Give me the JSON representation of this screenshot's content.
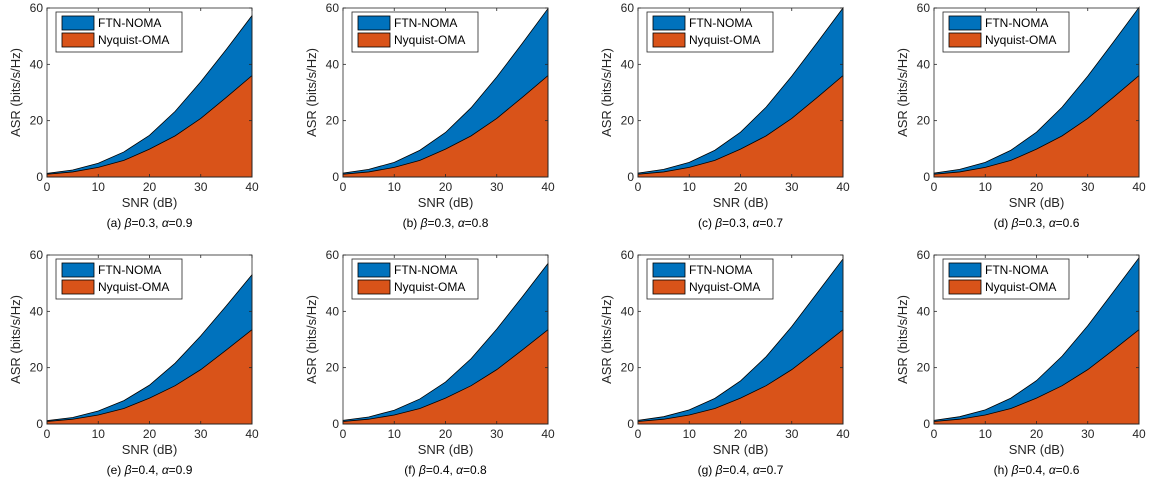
{
  "colors": {
    "ftn_noma": "#0072BD",
    "nyquist_oma": "#D95319"
  },
  "chart_data": [
    {
      "type": "area",
      "caption": {
        "prefix": "(a) ",
        "beta": "β",
        "beta_value": "=0.3, ",
        "alpha": "α",
        "alpha_value": "=0.9"
      },
      "xlabel": "SNR (dB)",
      "ylabel": "ASR (bits/s/Hz)",
      "xlim": [
        0,
        40
      ],
      "ylim": [
        0,
        60
      ],
      "xticks": [
        "0",
        "10",
        "20",
        "30",
        "40"
      ],
      "yticks": [
        "0",
        "20",
        "40",
        "60"
      ],
      "legend_position": "top-left",
      "x": [
        0,
        5,
        10,
        15,
        20,
        25,
        30,
        35,
        40
      ],
      "series": [
        {
          "name": "FTN-NOMA",
          "values": [
            1.3,
            2.5,
            4.9,
            8.9,
            14.8,
            23.3,
            33.8,
            45.3,
            57.3
          ]
        },
        {
          "name": "Nyquist-OMA",
          "values": [
            1.0,
            1.8,
            3.4,
            5.9,
            9.9,
            14.6,
            20.8,
            28.3,
            36.0
          ]
        }
      ]
    },
    {
      "type": "area",
      "caption": {
        "prefix": "(b) ",
        "beta": "β",
        "beta_value": "=0.3, ",
        "alpha": "α",
        "alpha_value": "=0.8"
      },
      "xlabel": "SNR (dB)",
      "ylabel": "ASR (bits/s/Hz)",
      "xlim": [
        0,
        40
      ],
      "ylim": [
        0,
        60
      ],
      "xticks": [
        "0",
        "10",
        "20",
        "30",
        "40"
      ],
      "yticks": [
        "0",
        "20",
        "40",
        "60"
      ],
      "legend_position": "top-left",
      "x": [
        0,
        5,
        10,
        15,
        20,
        25,
        30,
        35,
        40
      ],
      "series": [
        {
          "name": "FTN-NOMA",
          "values": [
            1.4,
            2.7,
            5.2,
            9.5,
            15.8,
            24.6,
            35.5,
            47.5,
            59.8
          ]
        },
        {
          "name": "Nyquist-OMA",
          "values": [
            1.0,
            1.8,
            3.4,
            5.9,
            9.9,
            14.6,
            20.8,
            28.3,
            36.0
          ]
        }
      ]
    },
    {
      "type": "area",
      "caption": {
        "prefix": "(c) ",
        "beta": "β",
        "beta_value": "=0.3, ",
        "alpha": "α",
        "alpha_value": "=0.7"
      },
      "xlabel": "SNR (dB)",
      "ylabel": "ASR (bits/s/Hz)",
      "xlim": [
        0,
        40
      ],
      "ylim": [
        0,
        60
      ],
      "xticks": [
        "0",
        "10",
        "20",
        "30",
        "40"
      ],
      "yticks": [
        "0",
        "20",
        "40",
        "60"
      ],
      "legend_position": "top-left",
      "x": [
        0,
        5,
        10,
        15,
        20,
        25,
        30,
        35,
        40
      ],
      "series": [
        {
          "name": "FTN-NOMA",
          "values": [
            1.4,
            2.7,
            5.2,
            9.5,
            15.9,
            24.8,
            35.8,
            47.8,
            60.0
          ]
        },
        {
          "name": "Nyquist-OMA",
          "values": [
            1.0,
            1.8,
            3.4,
            5.9,
            9.9,
            14.6,
            20.8,
            28.3,
            36.0
          ]
        }
      ]
    },
    {
      "type": "area",
      "caption": {
        "prefix": "(d) ",
        "beta": "β",
        "beta_value": "=0.3, ",
        "alpha": "α",
        "alpha_value": "=0.6"
      },
      "xlabel": "SNR (dB)",
      "ylabel": "ASR (bits/s/Hz)",
      "xlim": [
        0,
        40
      ],
      "ylim": [
        0,
        60
      ],
      "xticks": [
        "0",
        "10",
        "20",
        "30",
        "40"
      ],
      "yticks": [
        "0",
        "20",
        "40",
        "60"
      ],
      "legend_position": "top-left",
      "x": [
        0,
        5,
        10,
        15,
        20,
        25,
        30,
        35,
        40
      ],
      "series": [
        {
          "name": "FTN-NOMA",
          "values": [
            1.4,
            2.7,
            5.2,
            9.5,
            15.9,
            24.8,
            35.8,
            47.9,
            60.2
          ]
        },
        {
          "name": "Nyquist-OMA",
          "values": [
            1.0,
            1.8,
            3.4,
            5.9,
            9.9,
            14.6,
            20.8,
            28.3,
            36.0
          ]
        }
      ]
    },
    {
      "type": "area",
      "caption": {
        "prefix": "(e) ",
        "beta": "β",
        "beta_value": "=0.4, ",
        "alpha": "α",
        "alpha_value": "=0.9"
      },
      "xlabel": "SNR (dB)",
      "ylabel": "ASR (bits/s/Hz)",
      "xlim": [
        0,
        40
      ],
      "ylim": [
        0,
        60
      ],
      "xticks": [
        "0",
        "10",
        "20",
        "30",
        "40"
      ],
      "yticks": [
        "0",
        "20",
        "40",
        "60"
      ],
      "legend_position": "top-left",
      "x": [
        0,
        5,
        10,
        15,
        20,
        25,
        30,
        35,
        40
      ],
      "series": [
        {
          "name": "FTN-NOMA",
          "values": [
            1.2,
            2.3,
            4.6,
            8.3,
            13.8,
            21.6,
            31.3,
            42.0,
            53.0
          ]
        },
        {
          "name": "Nyquist-OMA",
          "values": [
            0.9,
            1.7,
            3.2,
            5.5,
            9.2,
            13.6,
            19.3,
            26.3,
            33.5
          ]
        }
      ]
    },
    {
      "type": "area",
      "caption": {
        "prefix": "(f) ",
        "beta": "β",
        "beta_value": "=0.4, ",
        "alpha": "α",
        "alpha_value": "=0.8"
      },
      "xlabel": "SNR (dB)",
      "ylabel": "ASR (bits/s/Hz)",
      "xlim": [
        0,
        40
      ],
      "ylim": [
        0,
        60
      ],
      "xticks": [
        "0",
        "10",
        "20",
        "30",
        "40"
      ],
      "yticks": [
        "0",
        "20",
        "40",
        "60"
      ],
      "legend_position": "top-left",
      "x": [
        0,
        5,
        10,
        15,
        20,
        25,
        30,
        35,
        40
      ],
      "series": [
        {
          "name": "FTN-NOMA",
          "values": [
            1.3,
            2.5,
            4.9,
            8.9,
            14.9,
            23.2,
            33.7,
            45.2,
            57.0
          ]
        },
        {
          "name": "Nyquist-OMA",
          "values": [
            0.9,
            1.7,
            3.2,
            5.5,
            9.2,
            13.6,
            19.3,
            26.3,
            33.5
          ]
        }
      ]
    },
    {
      "type": "area",
      "caption": {
        "prefix": "(g) ",
        "beta": "β",
        "beta_value": "=0.4, ",
        "alpha": "α",
        "alpha_value": "=0.7"
      },
      "xlabel": "SNR (dB)",
      "ylabel": "ASR (bits/s/Hz)",
      "xlim": [
        0,
        40
      ],
      "ylim": [
        0,
        60
      ],
      "xticks": [
        "0",
        "10",
        "20",
        "30",
        "40"
      ],
      "yticks": [
        "0",
        "20",
        "40",
        "60"
      ],
      "legend_position": "top-left",
      "x": [
        0,
        5,
        10,
        15,
        20,
        25,
        30,
        35,
        40
      ],
      "series": [
        {
          "name": "FTN-NOMA",
          "values": [
            1.3,
            2.6,
            5.0,
            9.1,
            15.3,
            23.9,
            34.6,
            46.6,
            58.6
          ]
        },
        {
          "name": "Nyquist-OMA",
          "values": [
            0.9,
            1.7,
            3.2,
            5.5,
            9.2,
            13.6,
            19.3,
            26.3,
            33.5
          ]
        }
      ]
    },
    {
      "type": "area",
      "caption": {
        "prefix": "(h) ",
        "beta": "β",
        "beta_value": "=0.4, ",
        "alpha": "α",
        "alpha_value": "=0.6"
      },
      "xlabel": "SNR (dB)",
      "ylabel": "ASR (bits/s/Hz)",
      "xlim": [
        0,
        40
      ],
      "ylim": [
        0,
        60
      ],
      "xticks": [
        "0",
        "10",
        "20",
        "30",
        "40"
      ],
      "yticks": [
        "0",
        "20",
        "40",
        "60"
      ],
      "legend_position": "top-left",
      "x": [
        0,
        5,
        10,
        15,
        20,
        25,
        30,
        35,
        40
      ],
      "series": [
        {
          "name": "FTN-NOMA",
          "values": [
            1.3,
            2.6,
            5.0,
            9.2,
            15.4,
            24.1,
            34.9,
            46.9,
            59.0
          ]
        },
        {
          "name": "Nyquist-OMA",
          "values": [
            0.9,
            1.7,
            3.2,
            5.5,
            9.2,
            13.6,
            19.3,
            26.3,
            33.5
          ]
        }
      ]
    }
  ]
}
